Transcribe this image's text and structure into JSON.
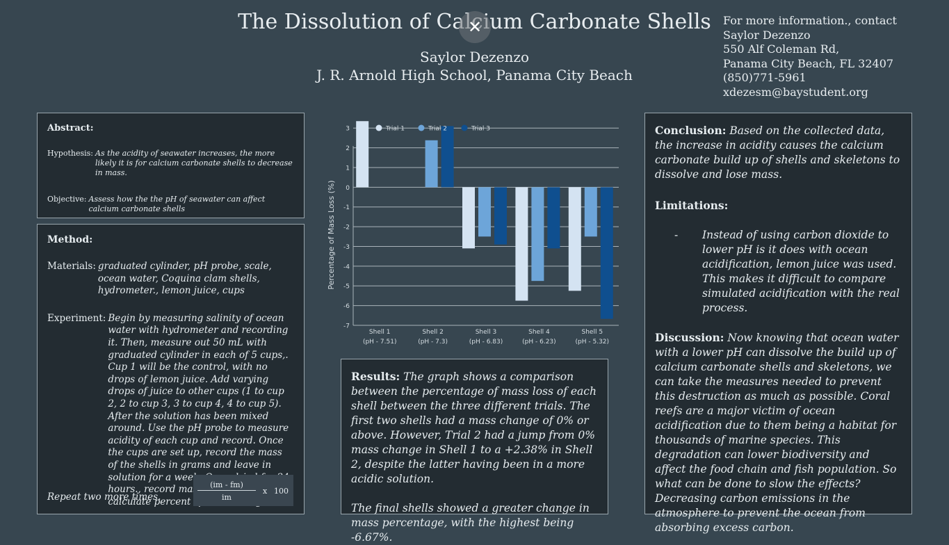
{
  "header": {
    "title": "The Dissolution of Calcium Carbonate Shells",
    "author": "Saylor Dezenzo",
    "school": "J. R. Arnold High School, Panama City Beach",
    "contact": [
      "For more information., contact",
      "Saylor Dezenzo",
      "550 Alf Coleman Rd,",
      "Panama City Beach, FL   32407",
      "(850)771-5961",
      "xdezesm@baystudent.org"
    ],
    "close_icon": "✕"
  },
  "abstract": {
    "heading": "Abstract:",
    "hypothesis_label": "Hypothesis:",
    "hypothesis_text": "As the acidity of seawater increases, the more likely it is for calcium carbonate shells to decrease in mass.",
    "objective_label": "Objective:",
    "objective_text": "Assess how the the pH of seawater can affect calcium carbonate shells"
  },
  "method": {
    "heading": "Method:",
    "materials_label": "Materials:",
    "materials_text": "graduated cylinder, pH probe, scale, ocean water, Coquina clam shells, hydrometer., lemon juice, cups",
    "experiment_label": "Experiment:",
    "experiment_text": "Begin by measuring salinity of ocean water with hydrometer and recording it. Then, measure out 50 mL with graduated cylinder in each of 5 cups,. Cup 1 will be the control, with no drops of lemon juice. Add varying drops of juice to other cups (1 to cup 2, 2 to cup 3, 3 to cup 4, 4 to cup 5). After the solution has been mixed around. Use the pH probe to measure acidity of each cup and record. Once the cups are set up, record the mass of the shells in grams and leave in solution for a week. Once dried for 24 hours., record mass in grams and calculate percent of mass change.",
    "repeat_text": "Repeat two more times.",
    "formula": {
      "numerator": "(im - fm)",
      "denominator": "im",
      "times": "x",
      "factor": "100"
    }
  },
  "results": {
    "heading": "Results:",
    "para1": "The graph shows a comparison between the percentage of mass loss of each shell between the three different trials. The first two shells had a mass change of 0% or above. However, Trial 2 had a jump from 0% mass change in Shell 1 to a +2.38% in Shell 2, despite the latter having been in a more acidic solution.",
    "para2": "The final shells showed a greater change in mass percentage, with the highest being -6.67%."
  },
  "conclusion": {
    "conclusion_label": "Conclusion:",
    "conclusion_text": "Based on the collected data, the increase in acidity causes the calcium carbonate build up of shells and skeletons to dissolve and lose mass.",
    "limitations_label": "Limitations:",
    "limitations_bullet": "-",
    "limitations_text": "Instead of using carbon dioxide to lower pH is it does with ocean acidification, lemon juice was used. This makes it difficult to compare simulated acidification with the real process.",
    "discussion_label": "Discussion:",
    "discussion_text": "Now knowing that ocean water with a lower pH can dissolve the build up of calcium carbonate shells and skeletons, we can take the measures needed to prevent this destruction as much as possible. Coral reefs are a major victim of ocean acidification due to them being a habitat for thousands of marine species. This degradation can lower biodiversity and affect the food chain and fish population. So what can be done to slow the effects? Decreasing carbon emissions in the atmosphere to prevent the ocean from absorbing excess carbon."
  },
  "chart_data": {
    "type": "bar",
    "categories": [
      "Shell 1",
      "Shell 2",
      "Shell 3",
      "Shell 4",
      "Shell 5"
    ],
    "category_sublabels": [
      "(pH - 7.51)",
      "(pH - 7.3)",
      "(pH - 6.83)",
      "(pH - 6.23)",
      "(pH - 5.32)"
    ],
    "series": [
      {
        "name": "Trial 1",
        "color": "#d4e3f2",
        "values": [
          3.35,
          0,
          -3.1,
          -5.75,
          -5.25
        ]
      },
      {
        "name": "Trial 2",
        "color": "#6da5d9",
        "values": [
          0,
          2.38,
          -2.5,
          -4.75,
          -2.5
        ]
      },
      {
        "name": "Trial 3",
        "color": "#0f4f8f",
        "values": [
          0,
          3.1,
          -2.9,
          -3.1,
          -6.67
        ]
      }
    ],
    "ylabel": "Percentage of Mass Loss (%)",
    "ylim": [
      -7,
      3.5
    ],
    "yticks": [
      3,
      2,
      1,
      0,
      -1,
      -2,
      -3,
      -4,
      -5,
      -6,
      -7
    ],
    "grid": true,
    "legend": "top"
  }
}
